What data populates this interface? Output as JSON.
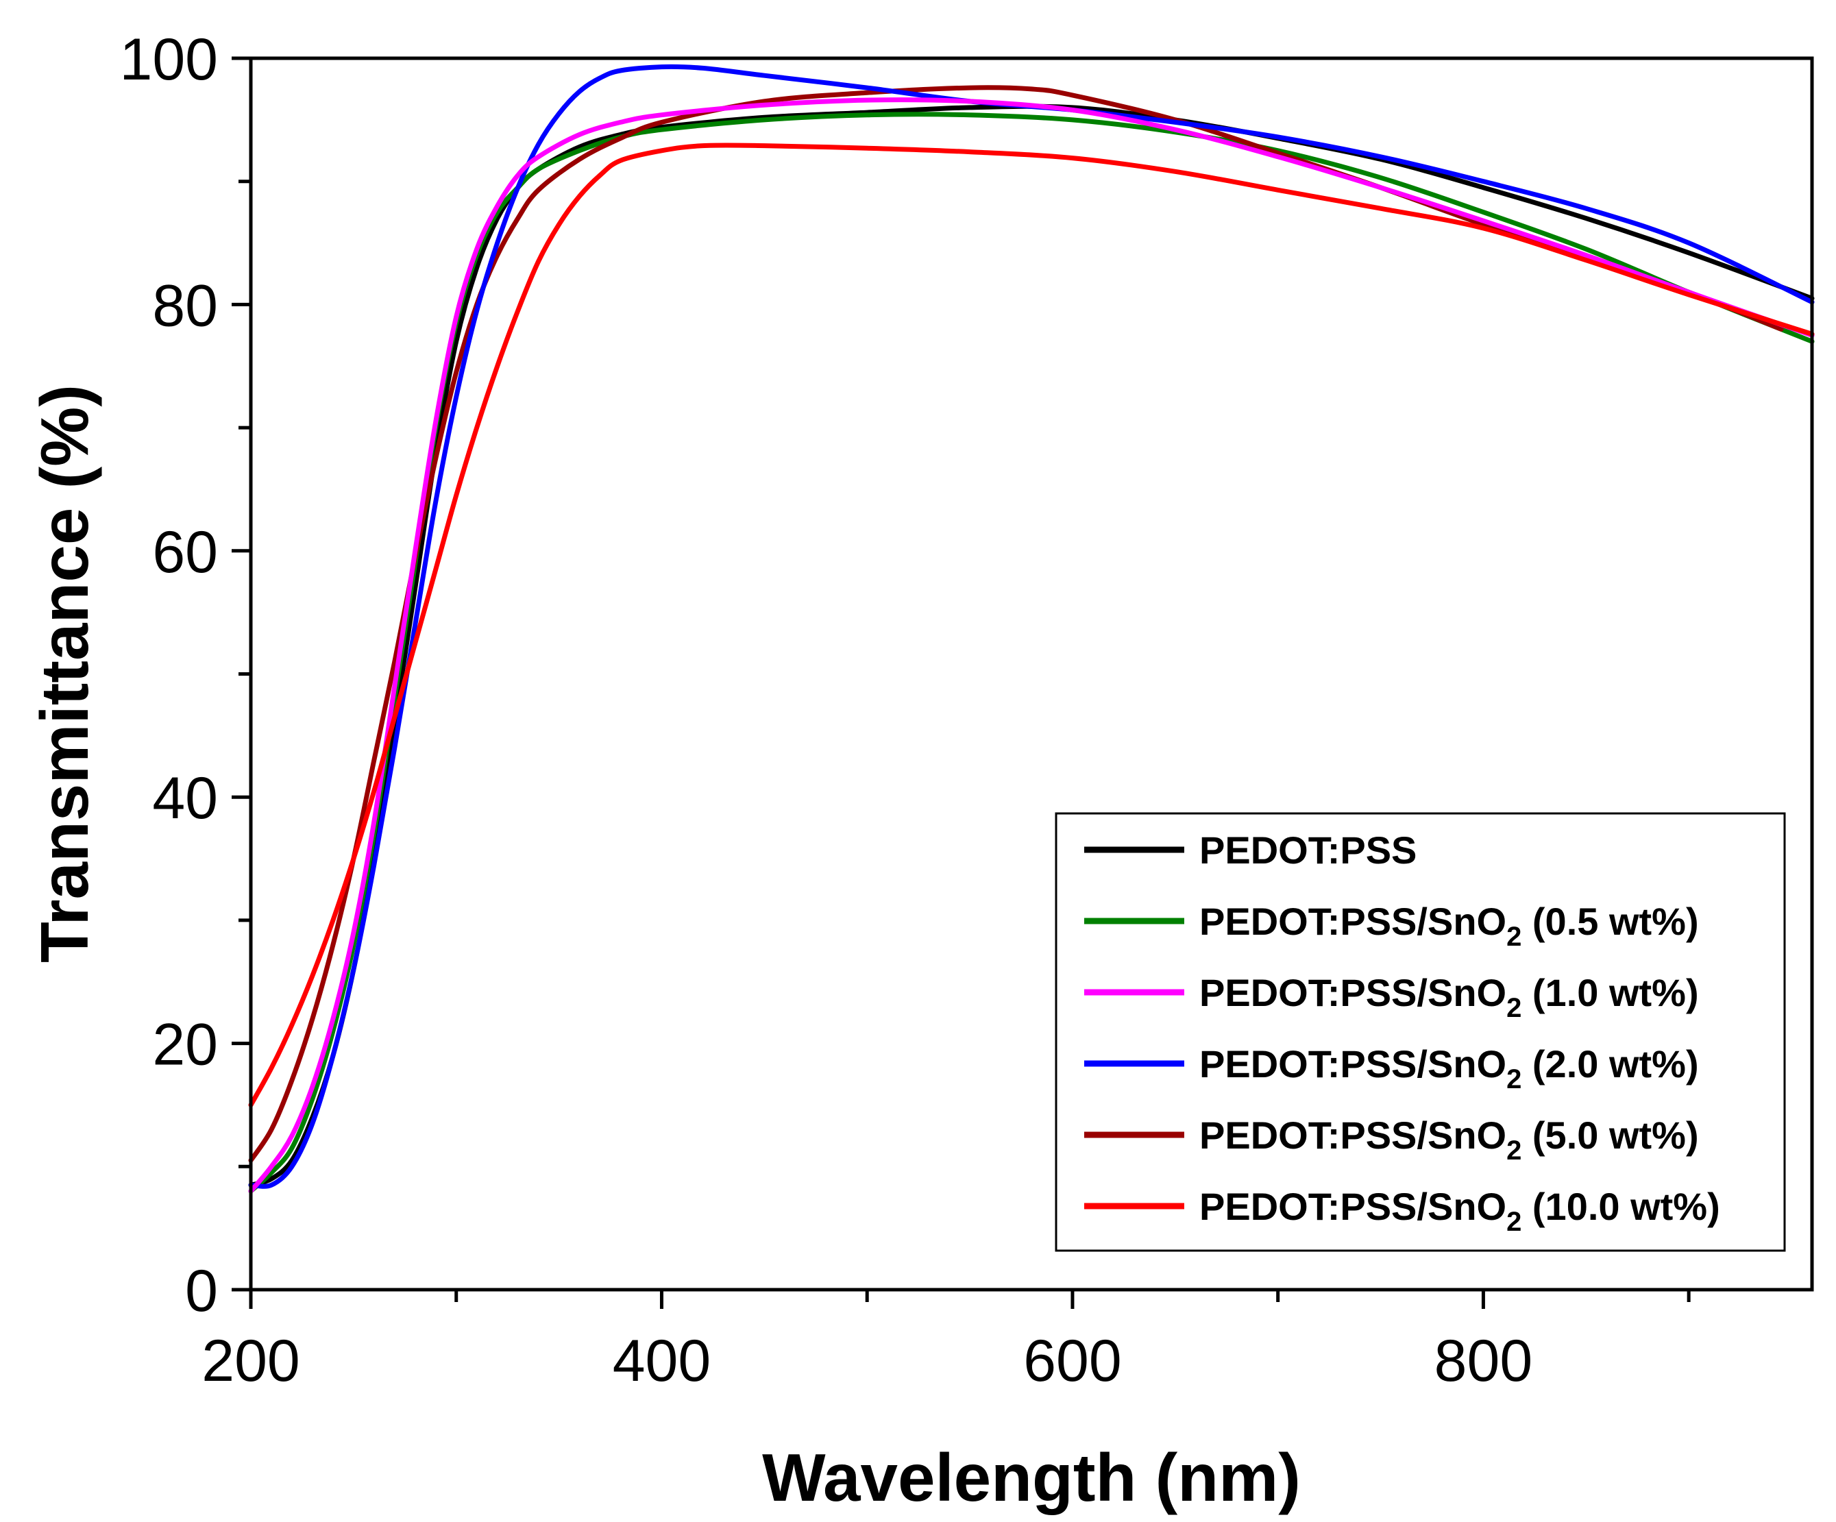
{
  "chart_data": {
    "type": "line",
    "title": "",
    "xlabel": "Wavelength (nm)",
    "ylabel": "Transmittance (%)",
    "xlim": [
      200,
      960
    ],
    "ylim": [
      0,
      100
    ],
    "x_ticks": [
      200,
      400,
      600,
      800
    ],
    "y_ticks": [
      0,
      20,
      40,
      60,
      80,
      100
    ],
    "grid": false,
    "legend_position": "bottom-right",
    "series": [
      {
        "name": "PEDOT:PSS",
        "name_base": "PEDOT:PSS",
        "name_sub": "",
        "name_tail": "",
        "color": "#000000",
        "points": [
          [
            200,
            8.5
          ],
          [
            210,
            9
          ],
          [
            220,
            10.5
          ],
          [
            230,
            14
          ],
          [
            240,
            19
          ],
          [
            250,
            26
          ],
          [
            260,
            35
          ],
          [
            270,
            46
          ],
          [
            280,
            57
          ],
          [
            290,
            68
          ],
          [
            300,
            77
          ],
          [
            310,
            83
          ],
          [
            320,
            87
          ],
          [
            330,
            89.5
          ],
          [
            340,
            91
          ],
          [
            360,
            92.8
          ],
          [
            380,
            93.8
          ],
          [
            400,
            94.4
          ],
          [
            450,
            95.2
          ],
          [
            500,
            95.6
          ],
          [
            550,
            96
          ],
          [
            600,
            96
          ],
          [
            650,
            95
          ],
          [
            700,
            93.5
          ],
          [
            750,
            91.8
          ],
          [
            800,
            89.5
          ],
          [
            850,
            87
          ],
          [
            900,
            84.2
          ],
          [
            960,
            80.5
          ]
        ]
      },
      {
        "name": "PEDOT:PSS/SnO2 (0.5 wt%)",
        "name_base": "PEDOT:PSS/SnO",
        "name_sub": "2",
        "name_tail": " (0.5 wt%)",
        "color": "#008000",
        "points": [
          [
            200,
            8
          ],
          [
            210,
            9.5
          ],
          [
            220,
            11.5
          ],
          [
            230,
            15.5
          ],
          [
            240,
            21
          ],
          [
            250,
            28
          ],
          [
            260,
            37
          ],
          [
            270,
            48
          ],
          [
            280,
            59
          ],
          [
            290,
            70
          ],
          [
            300,
            78.5
          ],
          [
            310,
            84
          ],
          [
            320,
            87.5
          ],
          [
            330,
            89.5
          ],
          [
            340,
            91
          ],
          [
            360,
            92.5
          ],
          [
            380,
            93.6
          ],
          [
            400,
            94.2
          ],
          [
            450,
            95
          ],
          [
            500,
            95.4
          ],
          [
            550,
            95.4
          ],
          [
            600,
            95
          ],
          [
            650,
            94
          ],
          [
            700,
            92.5
          ],
          [
            750,
            90.3
          ],
          [
            800,
            87.5
          ],
          [
            850,
            84.5
          ],
          [
            900,
            81
          ],
          [
            960,
            77
          ]
        ]
      },
      {
        "name": "PEDOT:PSS/SnO2 (1.0 wt%)",
        "name_base": "PEDOT:PSS/SnO",
        "name_sub": "2",
        "name_tail": " (1.0 wt%)",
        "color": "#ff00ff",
        "points": [
          [
            200,
            8
          ],
          [
            210,
            10
          ],
          [
            220,
            12.5
          ],
          [
            230,
            16.5
          ],
          [
            240,
            22
          ],
          [
            250,
            29
          ],
          [
            260,
            38
          ],
          [
            270,
            49
          ],
          [
            280,
            60
          ],
          [
            290,
            70.5
          ],
          [
            300,
            79
          ],
          [
            310,
            84.5
          ],
          [
            320,
            88
          ],
          [
            330,
            90.5
          ],
          [
            340,
            92
          ],
          [
            360,
            93.8
          ],
          [
            380,
            94.8
          ],
          [
            400,
            95.4
          ],
          [
            450,
            96.2
          ],
          [
            500,
            96.6
          ],
          [
            550,
            96.5
          ],
          [
            600,
            95.8
          ],
          [
            650,
            94.2
          ],
          [
            700,
            92
          ],
          [
            750,
            89.5
          ],
          [
            800,
            86.8
          ],
          [
            850,
            84
          ],
          [
            900,
            81
          ],
          [
            960,
            77.5
          ]
        ]
      },
      {
        "name": "PEDOT:PSS/SnO2 (2.0 wt%)",
        "name_base": "PEDOT:PSS/SnO",
        "name_sub": "2",
        "name_tail": " (2.0 wt%)",
        "color": "#0000ff",
        "points": [
          [
            200,
            8.5
          ],
          [
            210,
            8.5
          ],
          [
            220,
            10
          ],
          [
            230,
            13.5
          ],
          [
            240,
            19
          ],
          [
            250,
            26
          ],
          [
            260,
            34.5
          ],
          [
            270,
            44
          ],
          [
            280,
            54
          ],
          [
            290,
            64
          ],
          [
            300,
            72.5
          ],
          [
            310,
            79.5
          ],
          [
            320,
            85
          ],
          [
            330,
            89.5
          ],
          [
            340,
            93
          ],
          [
            350,
            95.5
          ],
          [
            360,
            97.3
          ],
          [
            370,
            98.4
          ],
          [
            380,
            99
          ],
          [
            400,
            99.3
          ],
          [
            420,
            99.2
          ],
          [
            450,
            98.6
          ],
          [
            500,
            97.6
          ],
          [
            550,
            96.5
          ],
          [
            600,
            95.8
          ],
          [
            650,
            94.8
          ],
          [
            700,
            93.6
          ],
          [
            750,
            92
          ],
          [
            800,
            90
          ],
          [
            850,
            87.8
          ],
          [
            900,
            85
          ],
          [
            960,
            80.2
          ]
        ]
      },
      {
        "name": "PEDOT:PSS/SnO2 (5.0 wt%)",
        "name_base": "PEDOT:PSS/SnO",
        "name_sub": "2",
        "name_tail": " (5.0 wt%)",
        "color": "#990000",
        "points": [
          [
            200,
            10.5
          ],
          [
            210,
            13
          ],
          [
            220,
            17
          ],
          [
            230,
            22
          ],
          [
            240,
            28
          ],
          [
            250,
            35
          ],
          [
            260,
            43
          ],
          [
            270,
            51
          ],
          [
            280,
            59.5
          ],
          [
            290,
            67.5
          ],
          [
            300,
            74.5
          ],
          [
            310,
            80
          ],
          [
            320,
            84
          ],
          [
            330,
            87
          ],
          [
            340,
            89.3
          ],
          [
            360,
            91.8
          ],
          [
            380,
            93.5
          ],
          [
            400,
            94.8
          ],
          [
            450,
            96.5
          ],
          [
            500,
            97.2
          ],
          [
            550,
            97.6
          ],
          [
            580,
            97.5
          ],
          [
            600,
            97
          ],
          [
            650,
            95
          ],
          [
            700,
            92.3
          ],
          [
            750,
            89.5
          ],
          [
            800,
            86.5
          ],
          [
            850,
            83.7
          ],
          [
            900,
            81
          ],
          [
            945,
            78
          ]
        ]
      },
      {
        "name": "PEDOT:PSS/SnO2 (10.0 wt%)",
        "name_base": "PEDOT:PSS/SnO",
        "name_sub": "2",
        "name_tail": " (10.0 wt%)",
        "color": "#ff0000",
        "points": [
          [
            200,
            15
          ],
          [
            210,
            18
          ],
          [
            220,
            21.5
          ],
          [
            230,
            25.5
          ],
          [
            240,
            30
          ],
          [
            250,
            35
          ],
          [
            260,
            40.5
          ],
          [
            270,
            46.5
          ],
          [
            280,
            52.5
          ],
          [
            290,
            58.5
          ],
          [
            300,
            64.5
          ],
          [
            310,
            70
          ],
          [
            320,
            75
          ],
          [
            330,
            79.5
          ],
          [
            340,
            83.5
          ],
          [
            350,
            86.5
          ],
          [
            360,
            88.8
          ],
          [
            370,
            90.5
          ],
          [
            380,
            91.7
          ],
          [
            400,
            92.5
          ],
          [
            420,
            92.9
          ],
          [
            450,
            92.9
          ],
          [
            500,
            92.7
          ],
          [
            550,
            92.4
          ],
          [
            600,
            91.9
          ],
          [
            650,
            90.8
          ],
          [
            700,
            89.3
          ],
          [
            750,
            87.8
          ],
          [
            800,
            86.2
          ],
          [
            850,
            83.6
          ],
          [
            900,
            80.8
          ],
          [
            960,
            77.6
          ]
        ]
      }
    ]
  }
}
